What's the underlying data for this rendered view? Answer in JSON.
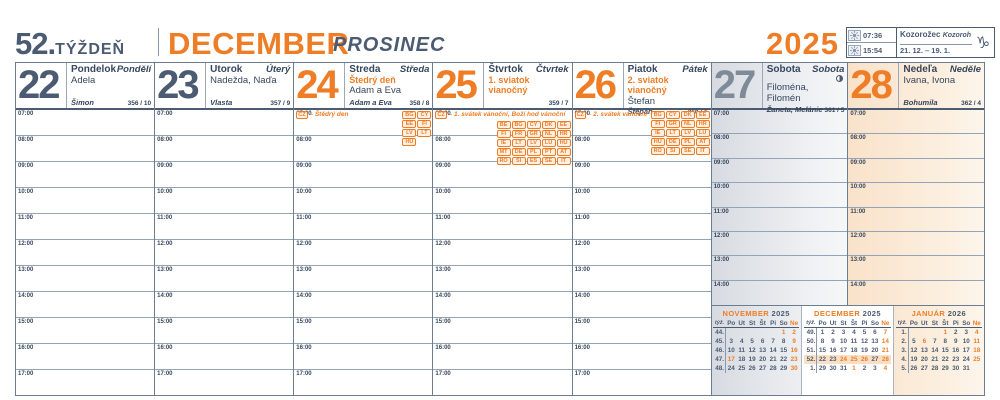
{
  "colors": {
    "accent": "#ee7d25",
    "slate": "#4b5b72",
    "ink": "#36465d",
    "grid": "#94a3b5",
    "frame": "#6c7d92"
  },
  "header": {
    "week_number": "52.",
    "week_word": "TÝŽDEŇ",
    "month_primary": "DECEMBER",
    "month_secondary": "PROSINEC",
    "year": "2025",
    "sunrise": "07:36",
    "sunset": "15:54",
    "zodiac_sk": "Kozorožec",
    "zodiac_cz": "Kozoroh",
    "zodiac_range": "21. 12. – 19. 1.",
    "zodiac_symbol": "♑"
  },
  "hours": {
    "weekday": [
      "07:00",
      "08:00",
      "09:00",
      "10:00",
      "11:00",
      "12:00",
      "13:00",
      "14:00",
      "15:00",
      "16:00",
      "17:00"
    ],
    "weekend": [
      "07:00",
      "08:00",
      "09:00",
      "10:00",
      "11:00",
      "12:00",
      "13:00",
      "14:00"
    ]
  },
  "days": [
    {
      "num": "22",
      "accent": "slate",
      "kind": "wd",
      "hours": "weekday",
      "name_sk": "Pondelok",
      "name_cz": "Pondělí",
      "holiday": "",
      "names": "Adela",
      "alt": "Šimon",
      "doy": "356 / 10",
      "moon": false,
      "note": null,
      "bg": ""
    },
    {
      "num": "23",
      "accent": "slate",
      "kind": "wd",
      "hours": "weekday",
      "name_sk": "Utorok",
      "name_cz": "Úterý",
      "holiday": "",
      "names": "Nadežda, Naďa",
      "alt": "Vlasta",
      "doy": "357 / 9",
      "moon": false,
      "note": null,
      "bg": ""
    },
    {
      "num": "24",
      "accent": "orange",
      "kind": "wd",
      "hours": "weekday",
      "name_sk": "Streda",
      "name_cz": "Středa",
      "holiday": "Štedrý deň",
      "names": "Adam a Eva",
      "alt": "Adam a Eva",
      "doy": "358 / 8",
      "moon": false,
      "note": {
        "chip": "CZ",
        "text": "– Štědrý den",
        "layout": "row",
        "cols": 2,
        "codes": [
          "BG",
          "CY",
          "EE",
          "FI",
          "LV",
          "LT",
          "HU"
        ]
      },
      "bg": ""
    },
    {
      "num": "25",
      "accent": "orange",
      "kind": "wd",
      "hours": "weekday",
      "name_sk": "Štvrtok",
      "name_cz": "Čtvrtek",
      "holiday": "1. sviatok vianočný",
      "names": "",
      "alt": "",
      "doy": "359 / 7",
      "moon": false,
      "note": {
        "chip": "CZ",
        "text": "– 1. svátek vánoční, Boží hod vánoční",
        "layout": "column",
        "cols": 5,
        "codes": [
          "BE",
          "BG",
          "CY",
          "DK",
          "EE",
          "FI",
          "FR",
          "GR",
          "NL",
          "HR",
          "IE",
          "LT",
          "LV",
          "LU",
          "HU",
          "MT",
          "DE",
          "PL",
          "PT",
          "AT",
          "RO",
          "SI",
          "ES",
          "SE",
          "IT"
        ]
      },
      "bg": ""
    },
    {
      "num": "26",
      "accent": "orange",
      "kind": "wd",
      "hours": "weekday",
      "name_sk": "Piatok",
      "name_cz": "Pátek",
      "holiday": "2. sviatok vianočný",
      "names": "Štefan",
      "alt": "Štěpán",
      "doy": "360 / 6",
      "moon": false,
      "note": {
        "chip": "CZ",
        "text": "– 2. svátek vánoční",
        "layout": "row",
        "cols": 4,
        "codes": [
          "BG",
          "CY",
          "DK",
          "EE",
          "FI",
          "GR",
          "NL",
          "HR",
          "IE",
          "LT",
          "LV",
          "LU",
          "HU",
          "DE",
          "PL",
          "AT",
          "RO",
          "SI",
          "SE",
          "IT"
        ]
      },
      "bg": ""
    },
    {
      "num": "27",
      "accent": "grey",
      "kind": "we",
      "hours": "weekend",
      "name_sk": "Sobota",
      "name_cz": "Sobota",
      "holiday": "",
      "names": "Filoména, Filomén",
      "alt": "Žaneta, Melánie",
      "doy": "361 / 5",
      "moon": true,
      "note": null,
      "bg": "sat"
    },
    {
      "num": "28",
      "accent": "orange",
      "kind": "we",
      "hours": "weekend",
      "name_sk": "Nedeľa",
      "name_cz": "Neděle",
      "holiday": "",
      "names": "Ivana, Ivona",
      "alt": "Bohumila",
      "doy": "362 / 4",
      "moon": false,
      "note": null,
      "bg": "sun"
    }
  ],
  "mini_calendars": {
    "col_headers": [
      "týž.",
      "Po",
      "Ut",
      "St",
      "Št",
      "Pi",
      "So",
      "Ne"
    ],
    "months": [
      {
        "name": "NOVEMBER",
        "year": "2025",
        "panel": "plain",
        "weeks": [
          {
            "wk": "44.",
            "days": [
              "",
              "",
              "",
              "",
              "",
              "1",
              "2"
            ],
            "orange": [
              5,
              6
            ],
            "hl": false
          },
          {
            "wk": "45.",
            "days": [
              "3",
              "4",
              "5",
              "6",
              "7",
              "8",
              "9"
            ],
            "orange": [
              6
            ],
            "hl": false
          },
          {
            "wk": "46.",
            "days": [
              "10",
              "11",
              "12",
              "13",
              "14",
              "15",
              "16"
            ],
            "orange": [
              6
            ],
            "hl": false
          },
          {
            "wk": "47.",
            "days": [
              "17",
              "18",
              "19",
              "20",
              "21",
              "22",
              "23"
            ],
            "orange": [
              0,
              6
            ],
            "hl": false
          },
          {
            "wk": "48.",
            "days": [
              "24",
              "25",
              "26",
              "27",
              "28",
              "29",
              "30"
            ],
            "orange": [
              6
            ],
            "hl": false
          }
        ]
      },
      {
        "name": "DECEMBER",
        "year": "2025",
        "panel": "white",
        "weeks": [
          {
            "wk": "49.",
            "days": [
              "1",
              "2",
              "3",
              "4",
              "5",
              "6",
              "7"
            ],
            "orange": [
              6
            ],
            "hl": false
          },
          {
            "wk": "50.",
            "days": [
              "8",
              "9",
              "10",
              "11",
              "12",
              "13",
              "14"
            ],
            "orange": [
              6
            ],
            "hl": false
          },
          {
            "wk": "51.",
            "days": [
              "15",
              "16",
              "17",
              "18",
              "19",
              "20",
              "21"
            ],
            "orange": [
              6
            ],
            "hl": false
          },
          {
            "wk": "52.",
            "days": [
              "22",
              "23",
              "24",
              "25",
              "26",
              "27",
              "28"
            ],
            "orange": [
              2,
              3,
              4,
              6
            ],
            "hl": true
          },
          {
            "wk": "1.",
            "days": [
              "29",
              "30",
              "31",
              "1",
              "2",
              "3",
              "4"
            ],
            "orange": [
              3,
              6
            ],
            "hl": false
          }
        ]
      },
      {
        "name": "JANUÁR",
        "year": "2026",
        "panel": "plain",
        "weeks": [
          {
            "wk": "1.",
            "days": [
              "",
              "",
              "",
              "1",
              "2",
              "3",
              "4"
            ],
            "orange": [
              3,
              6
            ],
            "hl": false
          },
          {
            "wk": "2.",
            "days": [
              "5",
              "6",
              "7",
              "8",
              "9",
              "10",
              "11"
            ],
            "orange": [
              1,
              6
            ],
            "hl": false
          },
          {
            "wk": "3.",
            "days": [
              "12",
              "13",
              "14",
              "15",
              "16",
              "17",
              "18"
            ],
            "orange": [
              6
            ],
            "hl": false
          },
          {
            "wk": "4.",
            "days": [
              "19",
              "20",
              "21",
              "22",
              "23",
              "24",
              "25"
            ],
            "orange": [
              6
            ],
            "hl": false
          },
          {
            "wk": "5.",
            "days": [
              "26",
              "27",
              "28",
              "29",
              "30",
              "31",
              ""
            ],
            "orange": [],
            "hl": false
          }
        ]
      }
    ]
  }
}
